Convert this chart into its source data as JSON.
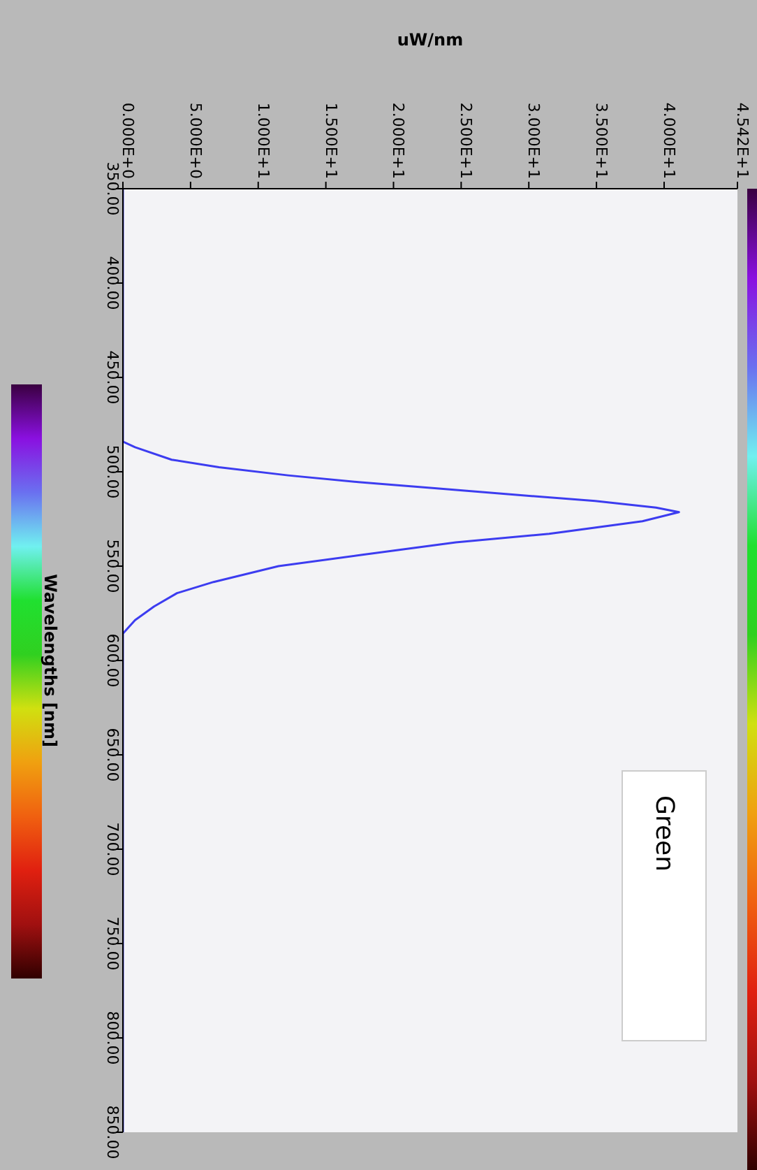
{
  "chart_data": {
    "type": "line",
    "xlabel": "uW/nm",
    "ylabel": "Wavelengths [nm]",
    "annotations": [
      "Green"
    ],
    "x": [
      0,
      0,
      0.9,
      3.6,
      7.1,
      12.2,
      17.4,
      23.2,
      29.4,
      34.9,
      39.4,
      41.1,
      38.4,
      31.5,
      24.6,
      17.7,
      11.5,
      6.7,
      4.0,
      2.3,
      0.9,
      0,
      0
    ],
    "series": [
      {
        "color": "#3c3cf0",
        "values": [
          350,
          484,
          487,
          493.6,
          497.6,
          501.9,
          505.5,
          508.8,
          512.4,
          515.5,
          519,
          521.4,
          526.2,
          532.9,
          537.4,
          544,
          550,
          558.4,
          564.3,
          571.4,
          578.6,
          585.7,
          850
        ]
      }
    ],
    "xlim": [
      0,
      45.42
    ],
    "xticks": [
      {
        "value": 0,
        "label": "0.000E+0"
      },
      {
        "value": 5,
        "label": "5.000E+0"
      },
      {
        "value": 10,
        "label": "1.000E+1"
      },
      {
        "value": 15,
        "label": "1.500E+1"
      },
      {
        "value": 20,
        "label": "2.000E+1"
      },
      {
        "value": 25,
        "label": "2.500E+1"
      },
      {
        "value": 30,
        "label": "3.000E+1"
      },
      {
        "value": 35,
        "label": "3.500E+1"
      },
      {
        "value": 40,
        "label": "4.000E+1"
      },
      {
        "value": 45.42,
        "label": "4.542E+1"
      }
    ],
    "ylim": [
      850,
      350
    ],
    "yticks": [
      {
        "value": 350,
        "label": "350.00"
      },
      {
        "value": 400,
        "label": "400.00"
      },
      {
        "value": 450,
        "label": "450.00"
      },
      {
        "value": 500,
        "label": "500.00"
      },
      {
        "value": 550,
        "label": "550.00"
      },
      {
        "value": 600,
        "label": "600.00"
      },
      {
        "value": 650,
        "label": "650.00"
      },
      {
        "value": 700,
        "label": "700.00"
      },
      {
        "value": 750,
        "label": "750.00"
      },
      {
        "value": 800,
        "label": "800.00"
      },
      {
        "value": 850,
        "label": "850.00"
      }
    ],
    "grid": false,
    "legend": false,
    "marker": "none",
    "line_style": "solid"
  }
}
